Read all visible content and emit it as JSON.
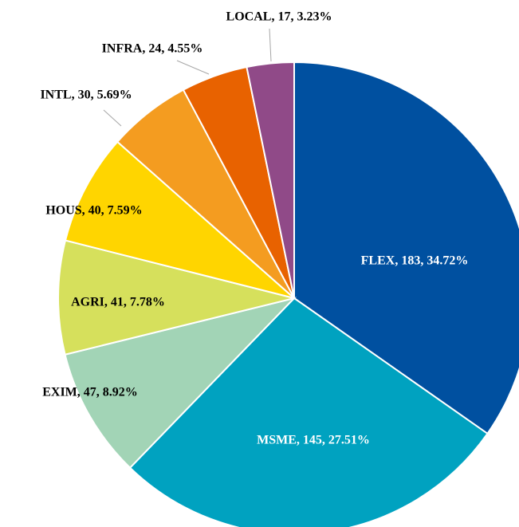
{
  "chart_data": {
    "type": "pie",
    "values": [
      183,
      145,
      47,
      41,
      40,
      30,
      24,
      17
    ],
    "value_labels": [
      "FLEX, 183, 34.72%",
      "MSME, 145, 27.51%",
      "EXIM, 47, 8.92%",
      "AGRI, 41, 7.78%",
      "HOUS, 40, 7.59%",
      "INTL, 30, 5.69%",
      "INFRA, 24, 4.55%",
      "LOCAL, 17, 3.23%"
    ],
    "colors": [
      "#0050a0",
      "#00a2c0",
      "#a2d4b6",
      "#d6e05c",
      "#ffd500",
      "#f49c20",
      "#e86200",
      "#904a88"
    ]
  }
}
